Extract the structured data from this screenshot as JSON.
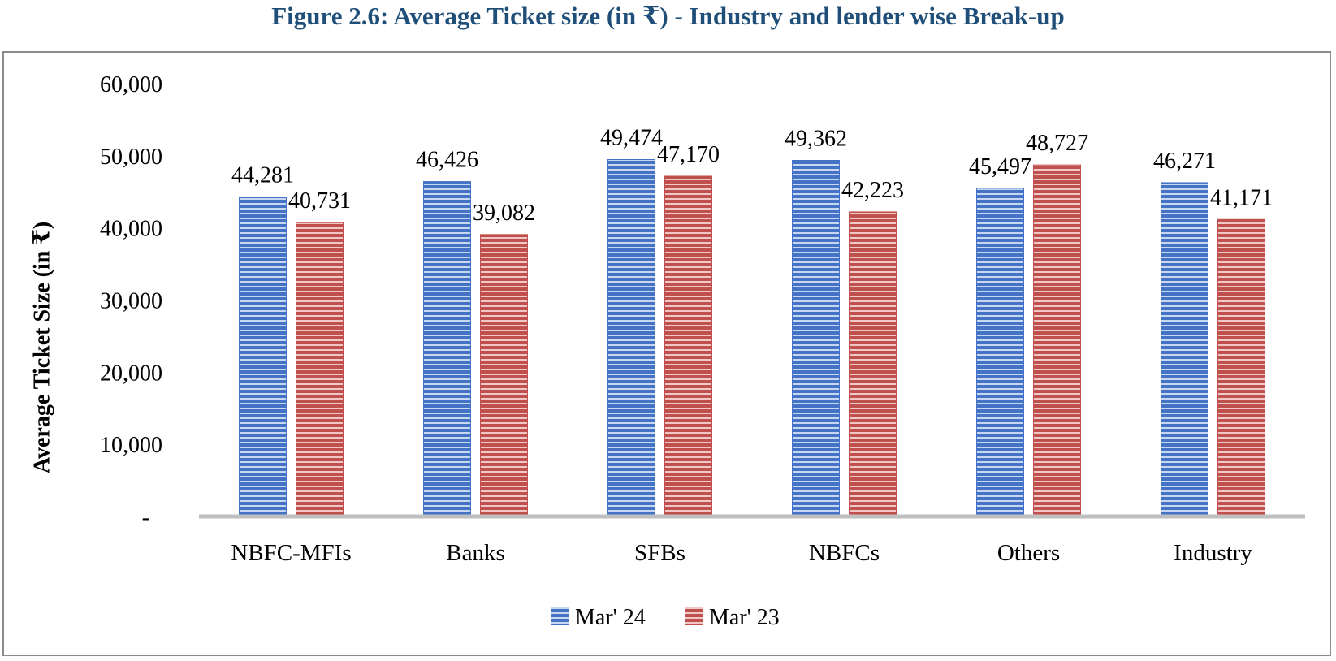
{
  "figure": {
    "title": "Figure 2.6: Average Ticket size (in ₹) - Industry and lender wise Break-up"
  },
  "colors": {
    "title": "#1f4e79",
    "series_1": "#4472c4",
    "series_2": "#c0504d",
    "axis": "#bfbfbf",
    "frame": "#8c8c8c"
  },
  "chart_data": {
    "type": "bar",
    "categories": [
      "NBFC-MFIs",
      "Banks",
      "SFBs",
      "NBFCs",
      "Others",
      "Industry"
    ],
    "series": [
      {
        "name": "Mar' 24",
        "values": [
          44281,
          46426,
          49474,
          49362,
          45497,
          46271
        ],
        "labels": [
          "44,281",
          "46,426",
          "49,474",
          "49,362",
          "45,497",
          "46,271"
        ]
      },
      {
        "name": "Mar' 23",
        "values": [
          40731,
          39082,
          47170,
          42223,
          48727,
          41171
        ],
        "labels": [
          "40,731",
          "39,082",
          "47,170",
          "42,223",
          "48,727",
          "41,171"
        ]
      }
    ],
    "ylabel": "Average Ticket Size (in ₹)",
    "xlabel": "",
    "ylim": [
      0,
      60000
    ],
    "yticks": [
      0,
      10000,
      20000,
      30000,
      40000,
      50000,
      60000
    ],
    "ytick_labels": [
      "-",
      "10,000",
      "20,000",
      "30,000",
      "40,000",
      "50,000",
      "60,000"
    ],
    "grid": false,
    "legend": "bottom",
    "bar_fill": "horizontal-stripes"
  }
}
